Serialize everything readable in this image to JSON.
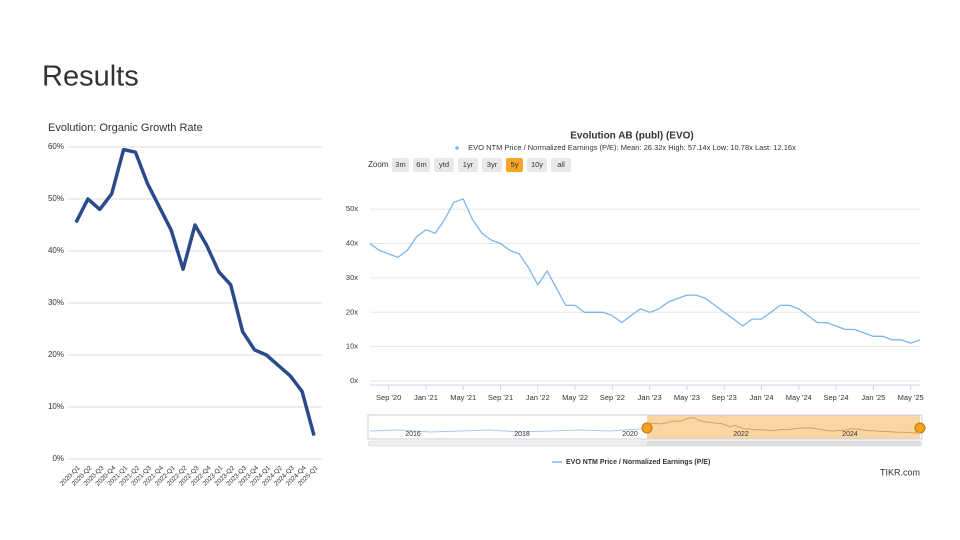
{
  "title": "Results",
  "chart_data": [
    {
      "type": "line",
      "title": "Evolution: Organic Growth Rate",
      "categories": [
        "2020-Q1",
        "2020-Q2",
        "2020-Q3",
        "2020-Q4",
        "2021-Q1",
        "2021-Q2",
        "2021-Q3",
        "2021-Q4",
        "2022-Q1",
        "2022-Q2",
        "2022-Q3",
        "2022-Q4",
        "2023-Q1",
        "2023-Q2",
        "2023-Q3",
        "2023-Q4",
        "2024-Q1",
        "2024-Q2",
        "2024-Q3",
        "2024-Q4",
        "2025-Q1"
      ],
      "values": [
        45.5,
        50,
        48,
        51,
        59.5,
        59,
        53,
        48.5,
        44,
        36.5,
        45,
        41,
        36,
        33.5,
        24.5,
        21,
        20,
        18,
        16,
        13,
        4.5
      ],
      "color": "#2b4a8b",
      "ylim": [
        0,
        60
      ],
      "yticks": [
        {
          "value": 0,
          "label": "0%"
        },
        {
          "value": 10,
          "label": "10%"
        },
        {
          "value": 20,
          "label": "20%"
        },
        {
          "value": 30,
          "label": "30%"
        },
        {
          "value": 40,
          "label": "40%"
        },
        {
          "value": 50,
          "label": "50%"
        },
        {
          "value": 60,
          "label": "60%"
        }
      ],
      "grid": true
    },
    {
      "type": "line",
      "title": "Evolution AB (publ) (EVO)",
      "subtitle": "EVO NTM Price / Normalized Earnings (P/E): Mean: 26.32x High: 57.14x Low: 10.78x Last: 12.16x",
      "zoom_label": "Zoom",
      "range_buttons": [
        "3m",
        "6m",
        "ytd",
        "1yr",
        "3yr",
        "5y",
        "10y",
        "all"
      ],
      "selected_range": "5y",
      "x": [
        "2020-07",
        "2020-08",
        "2020-09",
        "2020-10",
        "2020-11",
        "2020-12",
        "2021-01",
        "2021-02",
        "2021-03",
        "2021-04",
        "2021-05",
        "2021-06",
        "2021-07",
        "2021-08",
        "2021-09",
        "2021-10",
        "2021-11",
        "2021-12",
        "2022-01",
        "2022-02",
        "2022-03",
        "2022-04",
        "2022-05",
        "2022-06",
        "2022-07",
        "2022-08",
        "2022-09",
        "2022-10",
        "2022-11",
        "2022-12",
        "2023-01",
        "2023-02",
        "2023-03",
        "2023-04",
        "2023-05",
        "2023-06",
        "2023-07",
        "2023-08",
        "2023-09",
        "2023-10",
        "2023-11",
        "2023-12",
        "2024-01",
        "2024-02",
        "2024-03",
        "2024-04",
        "2024-05",
        "2024-06",
        "2024-07",
        "2024-08",
        "2024-09",
        "2024-10",
        "2024-11",
        "2024-12",
        "2025-01",
        "2025-02",
        "2025-03",
        "2025-04",
        "2025-05",
        "2025-06"
      ],
      "series": [
        {
          "name": "EVO NTM Price / Normalized Earnings (P/E)",
          "color": "#7cb5ec",
          "values": [
            40,
            38,
            37,
            36,
            38,
            42,
            44,
            43,
            47,
            52,
            53,
            47,
            43,
            41,
            40,
            38,
            37,
            33,
            28,
            32,
            27,
            22,
            22,
            20,
            20,
            20,
            19,
            17,
            19,
            21,
            20,
            21,
            23,
            24,
            25,
            25,
            24,
            22,
            20,
            18,
            16,
            18,
            18,
            20,
            22,
            22,
            21,
            19,
            17,
            17,
            16,
            15,
            15,
            14,
            13,
            13,
            12,
            12,
            11,
            12
          ]
        }
      ],
      "xlim": [
        "2020-07",
        "2025-06"
      ],
      "xticks": [
        {
          "value": "2020-09",
          "label": "Sep '20"
        },
        {
          "value": "2021-01",
          "label": "Jan '21"
        },
        {
          "value": "2021-05",
          "label": "May '21"
        },
        {
          "value": "2021-09",
          "label": "Sep '21"
        },
        {
          "value": "2022-01",
          "label": "Jan '22"
        },
        {
          "value": "2022-05",
          "label": "May '22"
        },
        {
          "value": "2022-09",
          "label": "Sep '22"
        },
        {
          "value": "2023-01",
          "label": "Jan '23"
        },
        {
          "value": "2023-05",
          "label": "May '23"
        },
        {
          "value": "2023-09",
          "label": "Sep '23"
        },
        {
          "value": "2024-01",
          "label": "Jan '24"
        },
        {
          "value": "2024-05",
          "label": "May '24"
        },
        {
          "value": "2024-09",
          "label": "Sep '24"
        },
        {
          "value": "2025-01",
          "label": "Jan '25"
        },
        {
          "value": "2025-05",
          "label": "May '25"
        }
      ],
      "ylim": [
        0,
        55
      ],
      "yticks": [
        {
          "value": 0,
          "label": "0x"
        },
        {
          "value": 10,
          "label": "10x"
        },
        {
          "value": 20,
          "label": "20x"
        },
        {
          "value": 30,
          "label": "30x"
        },
        {
          "value": 40,
          "label": "40x"
        },
        {
          "value": 50,
          "label": "50x"
        }
      ],
      "grid": true,
      "navigator_labels": [
        "2016",
        "2018",
        "2020",
        "2022",
        "2024"
      ],
      "credit": "TIKR.com"
    }
  ]
}
